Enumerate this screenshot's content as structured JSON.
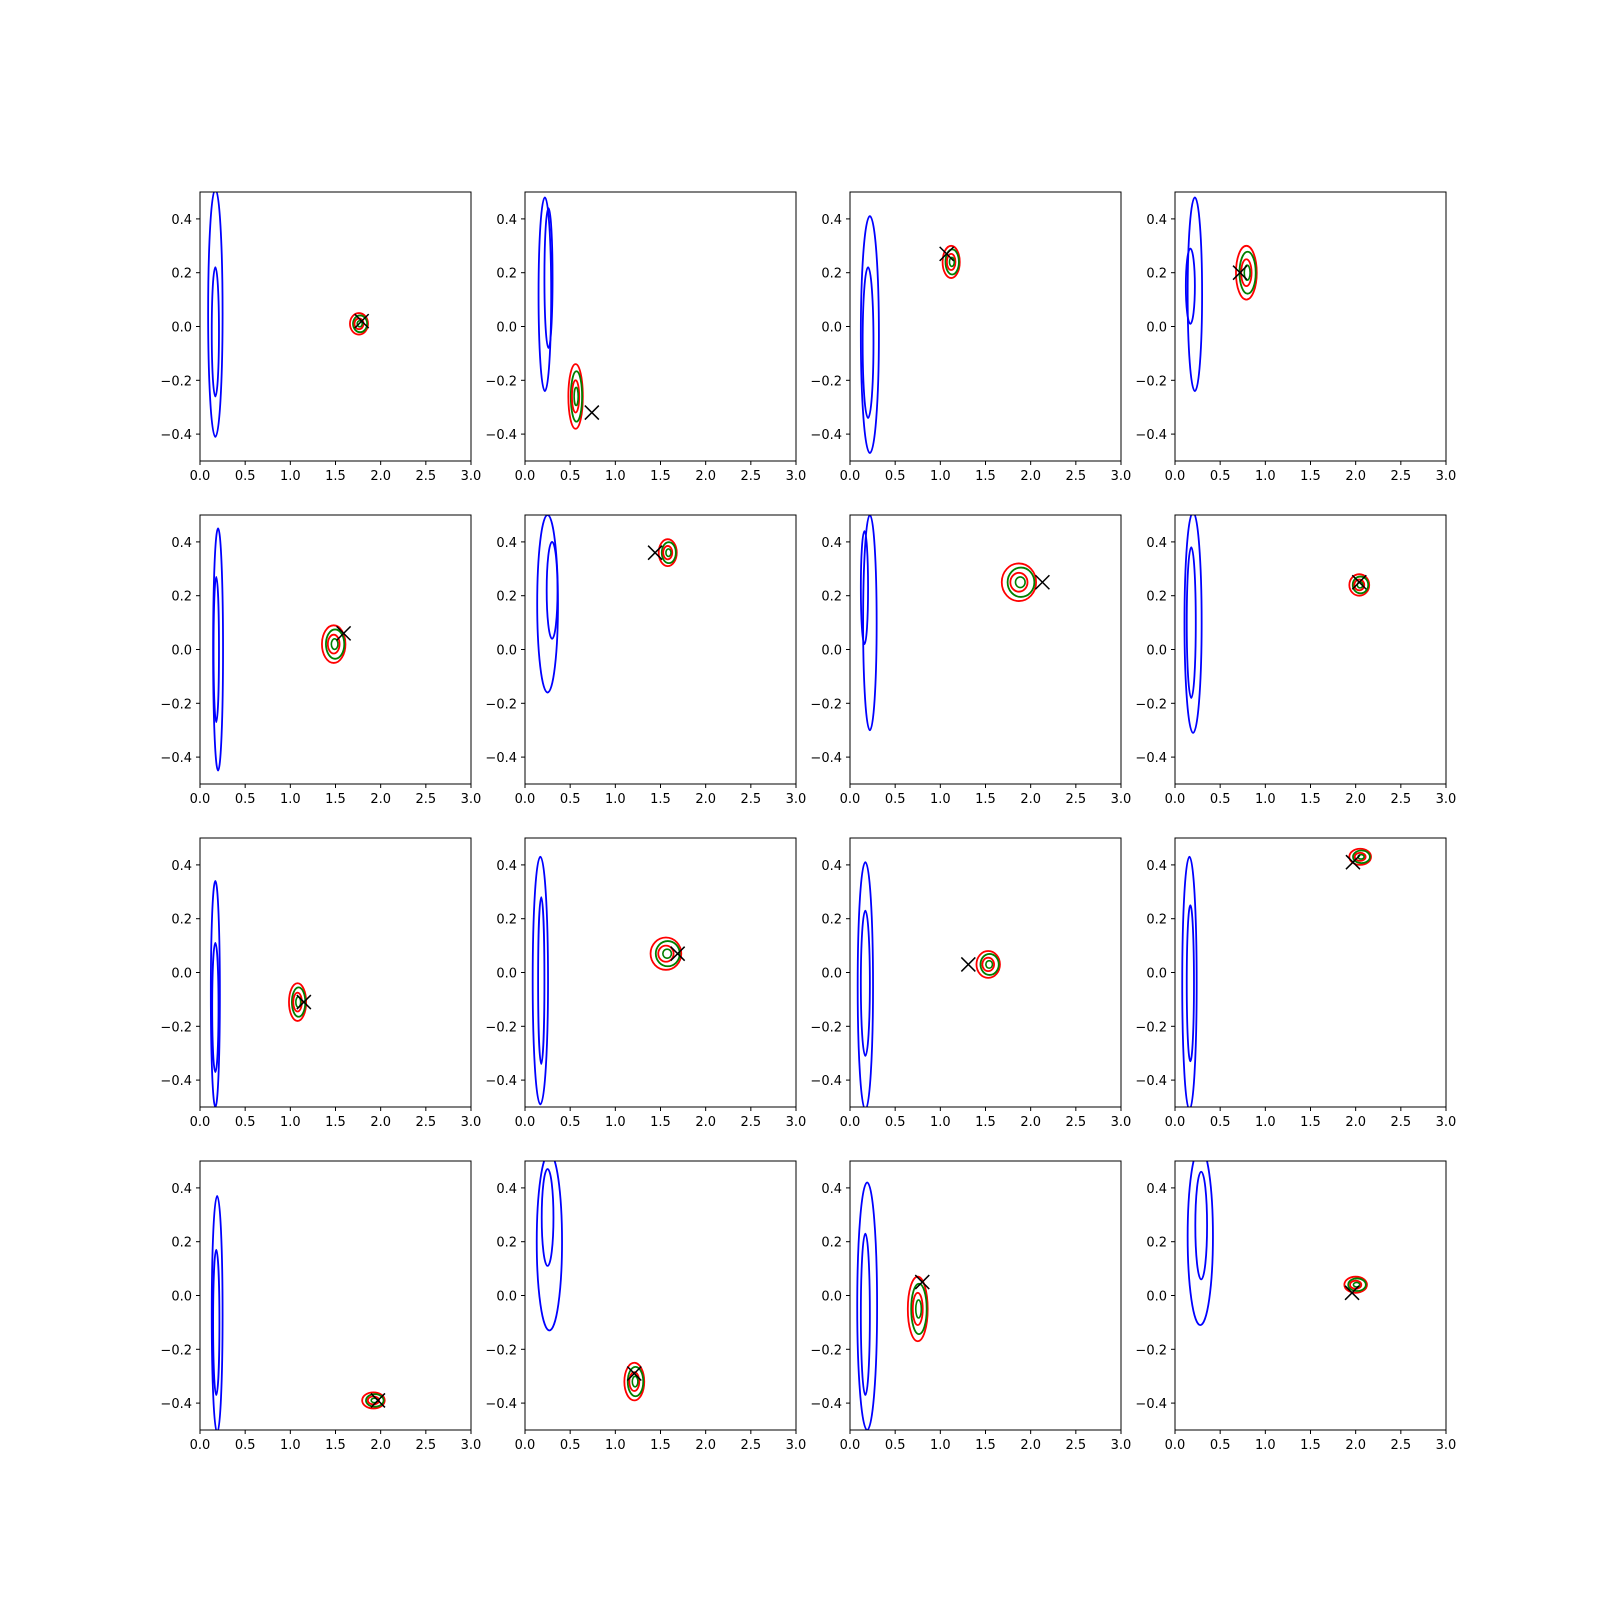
{
  "chart_data": {
    "type": "contour",
    "layout": {
      "rows": 4,
      "cols": 4
    },
    "colors": {
      "prior": "#0000ff",
      "posterior_a": "#008000",
      "posterior_b": "#ff0000",
      "marker": "#000000"
    },
    "axes": {
      "xlim": [
        0,
        3
      ],
      "ylim": [
        -0.5,
        0.5
      ],
      "xticks": [
        "0.0",
        "0.5",
        "1.0",
        "1.5",
        "2.0",
        "2.5",
        "3.0"
      ],
      "xtick_values": [
        0,
        0.5,
        1,
        1.5,
        2,
        2.5,
        3
      ],
      "yticks": [
        "0.4",
        "0.2",
        "0.0",
        "−0.2",
        "−0.4"
      ],
      "ytick_values": [
        0.4,
        0.2,
        0,
        -0.2,
        -0.4
      ],
      "grid": false
    },
    "panels": [
      {
        "blue": [
          [
            0.17,
            0.05,
            0.16,
            0.46
          ],
          [
            0.17,
            -0.02,
            0.08,
            0.24
          ]
        ],
        "blob": [
          1.76,
          0.01,
          0.2,
          0.04
        ],
        "marker": [
          1.79,
          0.02
        ]
      },
      {
        "blue": [
          [
            0.22,
            0.12,
            0.14,
            0.36
          ],
          [
            0.26,
            0.18,
            0.09,
            0.26
          ]
        ],
        "blob": [
          0.56,
          -0.26,
          0.16,
          0.12
        ],
        "marker": [
          0.74,
          -0.32
        ]
      },
      {
        "blue": [
          [
            0.22,
            -0.03,
            0.2,
            0.44
          ],
          [
            0.2,
            -0.06,
            0.12,
            0.28
          ]
        ],
        "blob": [
          1.12,
          0.24,
          0.19,
          0.06
        ],
        "marker": [
          1.07,
          0.27
        ]
      },
      {
        "blue": [
          [
            0.22,
            0.12,
            0.16,
            0.36
          ],
          [
            0.17,
            0.15,
            0.1,
            0.14
          ]
        ],
        "blob": [
          0.79,
          0.2,
          0.23,
          0.1
        ],
        "marker": [
          0.72,
          0.2
        ]
      },
      {
        "blue": [
          [
            0.2,
            0.0,
            0.11,
            0.45
          ],
          [
            0.18,
            0.0,
            0.06,
            0.27
          ]
        ],
        "blob": [
          1.48,
          0.02,
          0.26,
          0.07
        ],
        "marker": [
          1.59,
          0.06
        ]
      },
      {
        "blue": [
          [
            0.25,
            0.17,
            0.23,
            0.33
          ],
          [
            0.3,
            0.22,
            0.12,
            0.18
          ]
        ],
        "blob": [
          1.58,
          0.36,
          0.2,
          0.05
        ],
        "marker": [
          1.44,
          0.36
        ]
      },
      {
        "blue": [
          [
            0.22,
            0.1,
            0.15,
            0.4
          ],
          [
            0.16,
            0.23,
            0.08,
            0.21
          ]
        ],
        "blob": [
          1.87,
          0.25,
          0.38,
          0.07
        ],
        "marker": [
          2.13,
          0.25
        ]
      },
      {
        "blue": [
          [
            0.2,
            0.1,
            0.19,
            0.41
          ],
          [
            0.18,
            0.1,
            0.1,
            0.28
          ]
        ],
        "blob": [
          2.04,
          0.24,
          0.22,
          0.04
        ],
        "marker": [
          2.04,
          0.25
        ]
      },
      {
        "blue": [
          [
            0.17,
            -0.08,
            0.1,
            0.42
          ],
          [
            0.17,
            -0.13,
            0.07,
            0.24
          ]
        ],
        "blob": [
          1.08,
          -0.11,
          0.19,
          0.07
        ],
        "marker": [
          1.15,
          -0.11
        ]
      },
      {
        "blue": [
          [
            0.17,
            -0.03,
            0.17,
            0.46
          ],
          [
            0.18,
            -0.03,
            0.07,
            0.31
          ]
        ],
        "blob": [
          1.56,
          0.07,
          0.34,
          0.06
        ],
        "marker": [
          1.69,
          0.07
        ]
      },
      {
        "blue": [
          [
            0.17,
            -0.05,
            0.17,
            0.46
          ],
          [
            0.17,
            -0.04,
            0.1,
            0.27
          ]
        ],
        "blob": [
          1.53,
          0.03,
          0.26,
          0.05
        ],
        "marker": [
          1.31,
          0.03
        ]
      },
      {
        "blue": [
          [
            0.16,
            -0.04,
            0.16,
            0.47
          ],
          [
            0.17,
            -0.04,
            0.08,
            0.29
          ]
        ],
        "blob": [
          2.05,
          0.43,
          0.24,
          0.03
        ],
        "marker": [
          1.97,
          0.41
        ]
      },
      {
        "blue": [
          [
            0.19,
            -0.07,
            0.12,
            0.44
          ],
          [
            0.18,
            -0.1,
            0.07,
            0.27
          ]
        ],
        "blob": [
          1.92,
          -0.39,
          0.25,
          0.03
        ],
        "marker": [
          1.97,
          -0.39
        ]
      },
      {
        "blue": [
          [
            0.27,
            0.2,
            0.28,
            0.33
          ],
          [
            0.25,
            0.29,
            0.13,
            0.18
          ]
        ],
        "blob": [
          1.21,
          -0.32,
          0.22,
          0.07
        ],
        "marker": [
          1.21,
          -0.29
        ]
      },
      {
        "blue": [
          [
            0.19,
            -0.04,
            0.22,
            0.46
          ],
          [
            0.17,
            -0.07,
            0.1,
            0.3
          ]
        ],
        "blob": [
          0.75,
          -0.05,
          0.22,
          0.12
        ],
        "marker": [
          0.8,
          0.05
        ]
      },
      {
        "blue": [
          [
            0.28,
            0.22,
            0.28,
            0.33
          ],
          [
            0.29,
            0.26,
            0.13,
            0.2
          ]
        ],
        "blob": [
          2.0,
          0.04,
          0.25,
          0.03
        ],
        "marker": [
          1.96,
          0.01
        ]
      }
    ]
  }
}
